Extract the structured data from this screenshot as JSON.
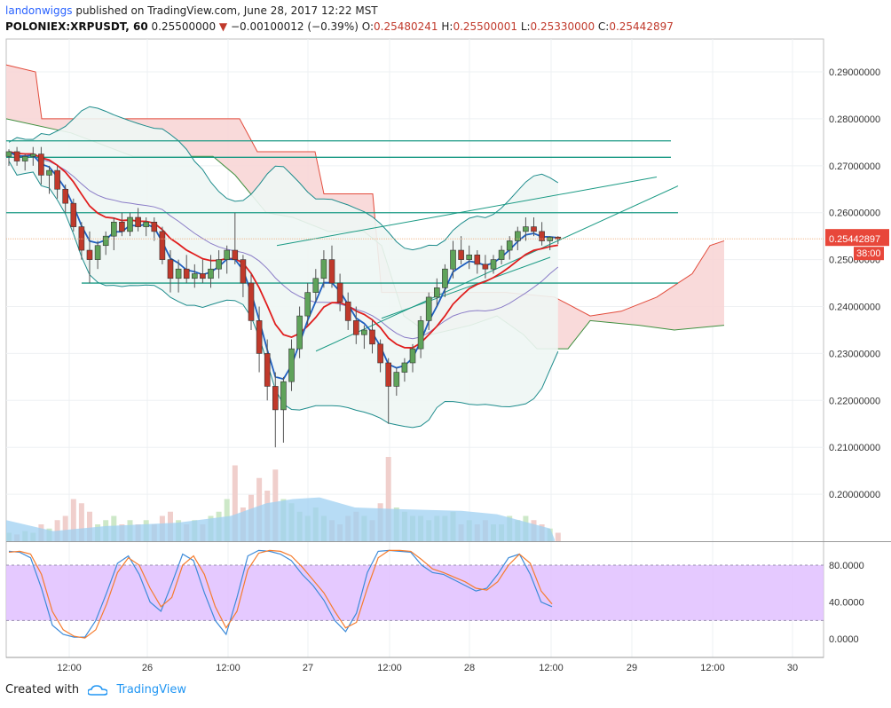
{
  "header": {
    "user": "landonwiggs",
    "published": "published on TradingView.com, June 28, 2017 12:22 MST",
    "symbol": "POLONIEX:XRPUSDT, 60",
    "last": "0.25500000",
    "change": "−0.00100012 (−0.39%)",
    "o_label": "O:",
    "o_value": "0.25480241",
    "h_label": "H:",
    "h_value": "0.25500001",
    "l_label": "L:",
    "l_value": "0.25330000",
    "c_label": "C:",
    "c_value": "0.25442897"
  },
  "footer": {
    "created_with": "Created with",
    "brand": "TradingView"
  },
  "colors": {
    "up": "#5fa35a",
    "down": "#c0392b",
    "hline": "#1a9a84",
    "stoch_band": "#e1bfff",
    "cloud_red": "#f8d4d4",
    "cloud_green": "#d6efd3",
    "bb_fill": "#eef6f4",
    "vol_area": "#9fd0f2"
  },
  "chart_data": [
    {
      "type": "candlestick",
      "symbol": "XRPUSDT",
      "timeframe": "60",
      "ylim": [
        0.19,
        0.297
      ],
      "y_ticks": [
        "0.29000000",
        "0.28000000",
        "0.27000000",
        "0.26000000",
        "0.25000000",
        "0.24000000",
        "0.23000000",
        "0.22000000",
        "0.21000000",
        "0.20000000"
      ],
      "x_ticks": [
        "12:00",
        "26",
        "12:00",
        "27",
        "12:00",
        "28",
        "12:00",
        "29",
        "12:00",
        "30"
      ],
      "price_labels": {
        "last": "0.25500000",
        "close": "0.25442897",
        "countdown": "38:00"
      },
      "horizontal_lines": [
        0.2753,
        0.2718,
        0.26,
        0.245
      ],
      "candles_ohlc": [
        [
          0.272,
          0.2735,
          0.27,
          0.273
        ],
        [
          0.273,
          0.274,
          0.27,
          0.271
        ],
        [
          0.271,
          0.2725,
          0.269,
          0.272
        ],
        [
          0.272,
          0.274,
          0.27,
          0.2725
        ],
        [
          0.2725,
          0.274,
          0.266,
          0.268
        ],
        [
          0.268,
          0.27,
          0.264,
          0.269
        ],
        [
          0.269,
          0.27,
          0.263,
          0.265
        ],
        [
          0.265,
          0.266,
          0.26,
          0.262
        ],
        [
          0.262,
          0.263,
          0.256,
          0.257
        ],
        [
          0.257,
          0.258,
          0.25,
          0.252
        ],
        [
          0.252,
          0.256,
          0.245,
          0.25
        ],
        [
          0.25,
          0.254,
          0.248,
          0.253
        ],
        [
          0.253,
          0.256,
          0.251,
          0.255
        ],
        [
          0.255,
          0.259,
          0.252,
          0.258
        ],
        [
          0.258,
          0.26,
          0.255,
          0.256
        ],
        [
          0.256,
          0.26,
          0.255,
          0.259
        ],
        [
          0.259,
          0.261,
          0.256,
          0.257
        ],
        [
          0.257,
          0.259,
          0.255,
          0.258
        ],
        [
          0.258,
          0.259,
          0.254,
          0.256
        ],
        [
          0.256,
          0.257,
          0.249,
          0.25
        ],
        [
          0.25,
          0.252,
          0.243,
          0.246
        ],
        [
          0.246,
          0.25,
          0.243,
          0.248
        ],
        [
          0.248,
          0.251,
          0.245,
          0.246
        ],
        [
          0.246,
          0.249,
          0.244,
          0.247
        ],
        [
          0.247,
          0.25,
          0.245,
          0.246
        ],
        [
          0.246,
          0.251,
          0.244,
          0.248
        ],
        [
          0.248,
          0.252,
          0.246,
          0.25
        ],
        [
          0.25,
          0.253,
          0.247,
          0.252
        ],
        [
          0.252,
          0.26,
          0.249,
          0.25
        ],
        [
          0.25,
          0.251,
          0.242,
          0.245
        ],
        [
          0.245,
          0.247,
          0.235,
          0.237
        ],
        [
          0.237,
          0.24,
          0.226,
          0.23
        ],
        [
          0.23,
          0.233,
          0.22,
          0.223
        ],
        [
          0.223,
          0.226,
          0.21,
          0.218
        ],
        [
          0.218,
          0.225,
          0.211,
          0.224
        ],
        [
          0.224,
          0.233,
          0.222,
          0.231
        ],
        [
          0.231,
          0.24,
          0.229,
          0.238
        ],
        [
          0.238,
          0.245,
          0.236,
          0.243
        ],
        [
          0.243,
          0.248,
          0.241,
          0.246
        ],
        [
          0.246,
          0.252,
          0.244,
          0.25
        ],
        [
          0.25,
          0.253,
          0.244,
          0.245
        ],
        [
          0.245,
          0.247,
          0.239,
          0.241
        ],
        [
          0.241,
          0.243,
          0.235,
          0.237
        ],
        [
          0.237,
          0.24,
          0.232,
          0.234
        ],
        [
          0.234,
          0.236,
          0.231,
          0.235
        ],
        [
          0.235,
          0.237,
          0.23,
          0.232
        ],
        [
          0.232,
          0.233,
          0.226,
          0.228
        ],
        [
          0.228,
          0.229,
          0.215,
          0.223
        ],
        [
          0.223,
          0.227,
          0.221,
          0.226
        ],
        [
          0.226,
          0.229,
          0.224,
          0.228
        ],
        [
          0.228,
          0.232,
          0.226,
          0.231
        ],
        [
          0.231,
          0.238,
          0.229,
          0.237
        ],
        [
          0.237,
          0.243,
          0.235,
          0.242
        ],
        [
          0.242,
          0.246,
          0.24,
          0.244
        ],
        [
          0.244,
          0.249,
          0.242,
          0.248
        ],
        [
          0.248,
          0.254,
          0.246,
          0.252
        ],
        [
          0.252,
          0.255,
          0.249,
          0.25
        ],
        [
          0.25,
          0.253,
          0.248,
          0.251
        ],
        [
          0.251,
          0.252,
          0.247,
          0.249
        ],
        [
          0.249,
          0.251,
          0.246,
          0.248
        ],
        [
          0.248,
          0.251,
          0.247,
          0.25
        ],
        [
          0.25,
          0.253,
          0.249,
          0.252
        ],
        [
          0.252,
          0.255,
          0.25,
          0.254
        ],
        [
          0.254,
          0.257,
          0.252,
          0.256
        ],
        [
          0.256,
          0.259,
          0.254,
          0.257
        ],
        [
          0.257,
          0.259,
          0.255,
          0.256
        ],
        [
          0.256,
          0.258,
          0.253,
          0.254
        ],
        [
          0.254,
          0.255,
          0.252,
          0.2548
        ],
        [
          0.2548,
          0.255,
          0.2533,
          0.2544
        ]
      ],
      "volume_relative": [
        0.1,
        0.08,
        0.12,
        0.1,
        0.2,
        0.15,
        0.25,
        0.3,
        0.5,
        0.45,
        0.35,
        0.2,
        0.25,
        0.3,
        0.2,
        0.25,
        0.2,
        0.25,
        0.2,
        0.3,
        0.35,
        0.25,
        0.2,
        0.25,
        0.2,
        0.3,
        0.35,
        0.5,
        0.9,
        0.4,
        0.55,
        0.75,
        0.6,
        0.85,
        0.5,
        0.45,
        0.35,
        0.3,
        0.4,
        0.3,
        0.25,
        0.2,
        0.3,
        0.35,
        0.3,
        0.25,
        0.45,
        1.0,
        0.4,
        0.35,
        0.3,
        0.3,
        0.25,
        0.3,
        0.3,
        0.35,
        0.2,
        0.25,
        0.2,
        0.25,
        0.2,
        0.2,
        0.3,
        0.25,
        0.3,
        0.25,
        0.2,
        0.15,
        0.1
      ],
      "indicators": [
        "Ichimoku cloud",
        "Bollinger Bands",
        "EMA",
        "Volume"
      ]
    },
    {
      "type": "line",
      "name_shown": "",
      "ylim": [
        -20,
        105
      ],
      "band": [
        20,
        80
      ],
      "y_ticks": [
        "80.0000",
        "40.0000",
        "0.0000"
      ],
      "series": [
        {
          "values": [
            95,
            94,
            88,
            55,
            15,
            5,
            2,
            2,
            20,
            50,
            82,
            90,
            70,
            40,
            30,
            60,
            92,
            85,
            50,
            20,
            5,
            45,
            90,
            96,
            95,
            92,
            85,
            70,
            58,
            42,
            20,
            8,
            28,
            72,
            95,
            96,
            95,
            94,
            80,
            72,
            70,
            64,
            58,
            52,
            55,
            70,
            88,
            92,
            70,
            40,
            35
          ]
        },
        {
          "values": [
            94,
            95,
            92,
            70,
            30,
            10,
            3,
            1,
            10,
            38,
            72,
            88,
            80,
            55,
            35,
            45,
            80,
            90,
            70,
            35,
            12,
            30,
            75,
            93,
            96,
            95,
            90,
            78,
            64,
            50,
            30,
            12,
            18,
            55,
            88,
            96,
            96,
            95,
            86,
            76,
            72,
            67,
            62,
            55,
            53,
            62,
            80,
            92,
            82,
            52,
            38
          ]
        }
      ]
    }
  ]
}
